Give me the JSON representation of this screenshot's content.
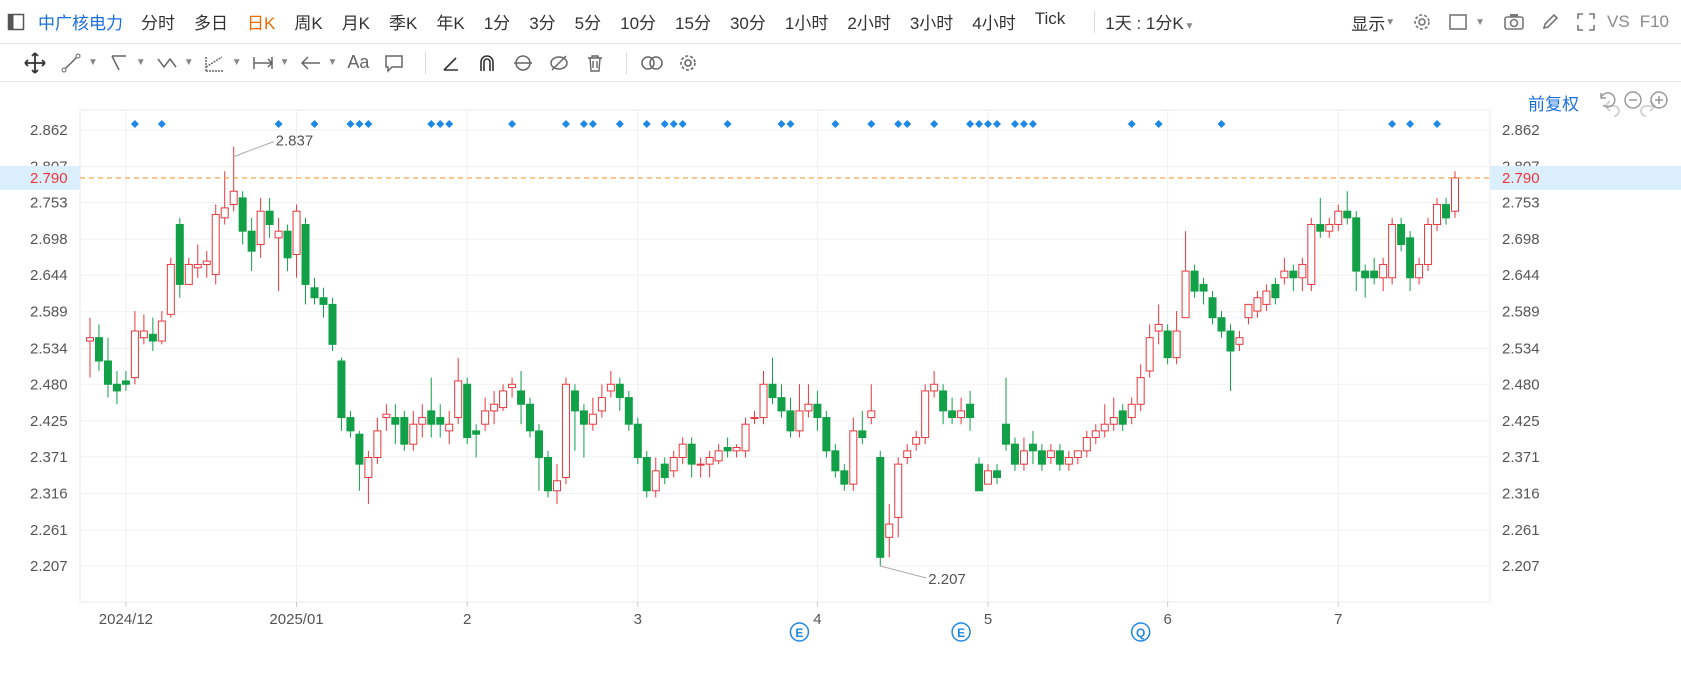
{
  "toolbar_top": {
    "symbol": "中广核电力",
    "periods": [
      "分时",
      "多日",
      "日K",
      "周K",
      "月K",
      "季K",
      "年K",
      "1分",
      "3分",
      "5分",
      "10分",
      "15分",
      "30分",
      "1小时",
      "2小时",
      "3小时",
      "4小时",
      "Tick"
    ],
    "active_period": "日K",
    "range_label": "1天 : 1分K",
    "display_label": "显示",
    "vs_label": "VS",
    "f10_label": "F10"
  },
  "toolbar_draw": {
    "icons": [
      "move-icon",
      "line-icon",
      "polyline-icon",
      "wave-icon",
      "fib-icon",
      "measure-icon",
      "arrow-icon",
      "text-icon",
      "comment-icon",
      "pen-icon",
      "magnet-icon",
      "lock-icon",
      "hide-icon",
      "delete-icon",
      "link-icon",
      "settings-icon"
    ],
    "text_label": "Aa"
  },
  "adjust_label": "前复权",
  "colors": {
    "up": "#e8383d",
    "down": "#11a047",
    "accent": "#1a6fe0",
    "price_line": "#f39c3a",
    "marker": "#1e88e5"
  },
  "chart_data": {
    "type": "candlestick",
    "y_ticks": [
      2.862,
      2.807,
      2.753,
      2.698,
      2.644,
      2.589,
      2.534,
      2.48,
      2.425,
      2.371,
      2.316,
      2.261,
      2.207
    ],
    "x_labels": [
      "2024/12",
      "2025/01",
      "2",
      "3",
      "4",
      "5",
      "6",
      "7"
    ],
    "current_price": "2.790",
    "high_label": "2.837",
    "low_label": "2.207",
    "event_markers": [
      "E",
      "E",
      "Q"
    ],
    "candles": [
      [
        2.545,
        2.55,
        2.58,
        2.49
      ],
      [
        2.55,
        2.515,
        2.57,
        2.5
      ],
      [
        2.515,
        2.48,
        2.55,
        2.46
      ],
      [
        2.48,
        2.47,
        2.5,
        2.45
      ],
      [
        2.485,
        2.48,
        2.5,
        2.47
      ],
      [
        2.49,
        2.56,
        2.59,
        2.48
      ],
      [
        2.55,
        2.56,
        2.585,
        2.54
      ],
      [
        2.555,
        2.545,
        2.58,
        2.53
      ],
      [
        2.545,
        2.575,
        2.59,
        2.54
      ],
      [
        2.585,
        2.66,
        2.67,
        2.58
      ],
      [
        2.72,
        2.63,
        2.73,
        2.61
      ],
      [
        2.63,
        2.66,
        2.67,
        2.63
      ],
      [
        2.655,
        2.66,
        2.69,
        2.64
      ],
      [
        2.66,
        2.665,
        2.68,
        2.64
      ],
      [
        2.645,
        2.735,
        2.75,
        2.63
      ],
      [
        2.73,
        2.745,
        2.8,
        2.72
      ],
      [
        2.75,
        2.77,
        2.837,
        2.74
      ],
      [
        2.76,
        2.71,
        2.77,
        2.69
      ],
      [
        2.71,
        2.68,
        2.73,
        2.65
      ],
      [
        2.69,
        2.74,
        2.76,
        2.67
      ],
      [
        2.74,
        2.72,
        2.76,
        2.7
      ],
      [
        2.7,
        2.71,
        2.73,
        2.62
      ],
      [
        2.71,
        2.67,
        2.72,
        2.65
      ],
      [
        2.675,
        2.74,
        2.75,
        2.64
      ],
      [
        2.72,
        2.63,
        2.73,
        2.6
      ],
      [
        2.625,
        2.61,
        2.64,
        2.6
      ],
      [
        2.61,
        2.6,
        2.625,
        2.58
      ],
      [
        2.6,
        2.54,
        2.61,
        2.53
      ],
      [
        2.515,
        2.43,
        2.52,
        2.41
      ],
      [
        2.43,
        2.41,
        2.44,
        2.4
      ],
      [
        2.405,
        2.36,
        2.41,
        2.32
      ],
      [
        2.34,
        2.37,
        2.38,
        2.3
      ],
      [
        2.37,
        2.41,
        2.43,
        2.36
      ],
      [
        2.43,
        2.435,
        2.45,
        2.41
      ],
      [
        2.43,
        2.42,
        2.45,
        2.39
      ],
      [
        2.43,
        2.39,
        2.44,
        2.38
      ],
      [
        2.39,
        2.42,
        2.44,
        2.38
      ],
      [
        2.42,
        2.43,
        2.45,
        2.4
      ],
      [
        2.44,
        2.42,
        2.49,
        2.4
      ],
      [
        2.43,
        2.42,
        2.45,
        2.4
      ],
      [
        2.41,
        2.42,
        2.44,
        2.39
      ],
      [
        2.43,
        2.485,
        2.52,
        2.42
      ],
      [
        2.48,
        2.4,
        2.49,
        2.39
      ],
      [
        2.41,
        2.405,
        2.42,
        2.37
      ],
      [
        2.42,
        2.44,
        2.46,
        2.41
      ],
      [
        2.44,
        2.45,
        2.47,
        2.42
      ],
      [
        2.445,
        2.47,
        2.48,
        2.44
      ],
      [
        2.475,
        2.48,
        2.49,
        2.46
      ],
      [
        2.47,
        2.45,
        2.5,
        2.42
      ],
      [
        2.45,
        2.41,
        2.46,
        2.4
      ],
      [
        2.41,
        2.37,
        2.42,
        2.32
      ],
      [
        2.37,
        2.32,
        2.38,
        2.31
      ],
      [
        2.32,
        2.335,
        2.36,
        2.3
      ],
      [
        2.34,
        2.48,
        2.49,
        2.33
      ],
      [
        2.47,
        2.44,
        2.48,
        2.38
      ],
      [
        2.44,
        2.42,
        2.45,
        2.37
      ],
      [
        2.42,
        2.435,
        2.46,
        2.41
      ],
      [
        2.44,
        2.46,
        2.48,
        2.43
      ],
      [
        2.47,
        2.48,
        2.5,
        2.46
      ],
      [
        2.48,
        2.46,
        2.49,
        2.44
      ],
      [
        2.46,
        2.42,
        2.47,
        2.41
      ],
      [
        2.42,
        2.37,
        2.43,
        2.36
      ],
      [
        2.37,
        2.32,
        2.38,
        2.31
      ],
      [
        2.32,
        2.35,
        2.37,
        2.31
      ],
      [
        2.36,
        2.34,
        2.37,
        2.33
      ],
      [
        2.35,
        2.37,
        2.38,
        2.34
      ],
      [
        2.37,
        2.39,
        2.4,
        2.36
      ],
      [
        2.39,
        2.36,
        2.4,
        2.34
      ],
      [
        2.36,
        2.36,
        2.37,
        2.34
      ],
      [
        2.36,
        2.37,
        2.38,
        2.34
      ],
      [
        2.365,
        2.38,
        2.39,
        2.36
      ],
      [
        2.385,
        2.38,
        2.4,
        2.37
      ],
      [
        2.38,
        2.385,
        2.39,
        2.37
      ],
      [
        2.38,
        2.42,
        2.43,
        2.37
      ],
      [
        2.43,
        2.43,
        2.44,
        2.42
      ],
      [
        2.43,
        2.48,
        2.5,
        2.42
      ],
      [
        2.48,
        2.46,
        2.52,
        2.45
      ],
      [
        2.46,
        2.44,
        2.48,
        2.43
      ],
      [
        2.44,
        2.41,
        2.46,
        2.4
      ],
      [
        2.41,
        2.44,
        2.48,
        2.4
      ],
      [
        2.44,
        2.45,
        2.48,
        2.43
      ],
      [
        2.45,
        2.43,
        2.47,
        2.41
      ],
      [
        2.43,
        2.38,
        2.44,
        2.37
      ],
      [
        2.38,
        2.35,
        2.39,
        2.34
      ],
      [
        2.35,
        2.33,
        2.36,
        2.32
      ],
      [
        2.33,
        2.41,
        2.43,
        2.32
      ],
      [
        2.41,
        2.4,
        2.44,
        2.39
      ],
      [
        2.43,
        2.44,
        2.48,
        2.42
      ],
      [
        2.37,
        2.22,
        2.38,
        2.207
      ],
      [
        2.25,
        2.27,
        2.3,
        2.22
      ],
      [
        2.28,
        2.36,
        2.37,
        2.25
      ],
      [
        2.37,
        2.38,
        2.39,
        2.36
      ],
      [
        2.39,
        2.4,
        2.41,
        2.38
      ],
      [
        2.4,
        2.47,
        2.48,
        2.39
      ],
      [
        2.47,
        2.48,
        2.5,
        2.46
      ],
      [
        2.47,
        2.44,
        2.48,
        2.42
      ],
      [
        2.44,
        2.43,
        2.46,
        2.42
      ],
      [
        2.43,
        2.44,
        2.46,
        2.42
      ],
      [
        2.45,
        2.43,
        2.47,
        2.41
      ],
      [
        2.36,
        2.32,
        2.37,
        2.32
      ],
      [
        2.33,
        2.35,
        2.36,
        2.33
      ],
      [
        2.35,
        2.34,
        2.36,
        2.33
      ],
      [
        2.42,
        2.39,
        2.49,
        2.38
      ],
      [
        2.39,
        2.36,
        2.4,
        2.35
      ],
      [
        2.36,
        2.38,
        2.4,
        2.35
      ],
      [
        2.39,
        2.38,
        2.41,
        2.36
      ],
      [
        2.38,
        2.36,
        2.39,
        2.35
      ],
      [
        2.37,
        2.38,
        2.39,
        2.36
      ],
      [
        2.38,
        2.36,
        2.39,
        2.35
      ],
      [
        2.36,
        2.37,
        2.38,
        2.35
      ],
      [
        2.37,
        2.38,
        2.38,
        2.36
      ],
      [
        2.38,
        2.4,
        2.41,
        2.37
      ],
      [
        2.4,
        2.41,
        2.42,
        2.39
      ],
      [
        2.41,
        2.42,
        2.45,
        2.4
      ],
      [
        2.42,
        2.43,
        2.46,
        2.41
      ],
      [
        2.44,
        2.42,
        2.45,
        2.41
      ],
      [
        2.43,
        2.45,
        2.46,
        2.42
      ],
      [
        2.45,
        2.49,
        2.51,
        2.44
      ],
      [
        2.5,
        2.55,
        2.57,
        2.49
      ],
      [
        2.56,
        2.57,
        2.6,
        2.54
      ],
      [
        2.56,
        2.52,
        2.57,
        2.51
      ],
      [
        2.52,
        2.56,
        2.59,
        2.51
      ],
      [
        2.58,
        2.65,
        2.71,
        2.58
      ],
      [
        2.65,
        2.62,
        2.66,
        2.61
      ],
      [
        2.63,
        2.62,
        2.64,
        2.6
      ],
      [
        2.61,
        2.58,
        2.62,
        2.57
      ],
      [
        2.58,
        2.56,
        2.59,
        2.55
      ],
      [
        2.56,
        2.53,
        2.57,
        2.47
      ],
      [
        2.54,
        2.55,
        2.56,
        2.53
      ],
      [
        2.58,
        2.6,
        2.6,
        2.57
      ],
      [
        2.59,
        2.61,
        2.62,
        2.58
      ],
      [
        2.6,
        2.62,
        2.63,
        2.59
      ],
      [
        2.63,
        2.61,
        2.64,
        2.6
      ],
      [
        2.64,
        2.65,
        2.67,
        2.63
      ],
      [
        2.65,
        2.64,
        2.66,
        2.62
      ],
      [
        2.64,
        2.66,
        2.67,
        2.62
      ],
      [
        2.63,
        2.72,
        2.73,
        2.62
      ],
      [
        2.72,
        2.71,
        2.76,
        2.7
      ],
      [
        2.71,
        2.72,
        2.73,
        2.7
      ],
      [
        2.72,
        2.74,
        2.75,
        2.71
      ],
      [
        2.74,
        2.73,
        2.77,
        2.72
      ],
      [
        2.73,
        2.65,
        2.74,
        2.62
      ],
      [
        2.65,
        2.64,
        2.66,
        2.61
      ],
      [
        2.65,
        2.64,
        2.67,
        2.63
      ],
      [
        2.64,
        2.66,
        2.67,
        2.62
      ],
      [
        2.64,
        2.72,
        2.73,
        2.63
      ],
      [
        2.72,
        2.69,
        2.73,
        2.68
      ],
      [
        2.7,
        2.64,
        2.71,
        2.62
      ],
      [
        2.64,
        2.66,
        2.67,
        2.63
      ],
      [
        2.66,
        2.72,
        2.73,
        2.65
      ],
      [
        2.72,
        2.75,
        2.76,
        2.71
      ],
      [
        2.75,
        2.73,
        2.76,
        2.72
      ],
      [
        2.74,
        2.79,
        2.8,
        2.73
      ]
    ]
  }
}
